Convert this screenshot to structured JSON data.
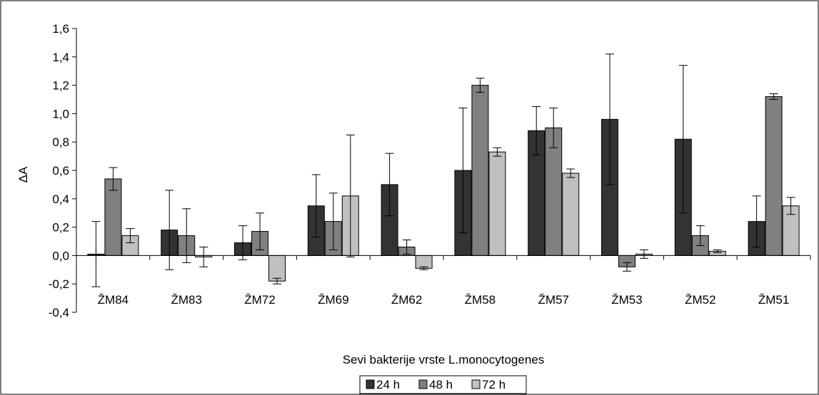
{
  "chart_data": {
    "type": "bar",
    "title": "",
    "xlabel": "Sevi bakterije vrste L.monocytogenes",
    "ylabel": "ΔA",
    "ylim": [
      -0.4,
      1.6
    ],
    "yticks": [
      "-0,4",
      "-0,2",
      "0,0",
      "0,2",
      "0,4",
      "0,6",
      "0,8",
      "1,0",
      "1,2",
      "1,4",
      "1,6"
    ],
    "categories": [
      "ŽM84",
      "ŽM83",
      "ŽM72",
      "ŽM69",
      "ŽM62",
      "ŽM58",
      "ŽM57",
      "ŽM53",
      "ŽM52",
      "ŽM51"
    ],
    "series": [
      {
        "name": "24 h",
        "color": "#333333",
        "values": [
          0.01,
          0.18,
          0.09,
          0.35,
          0.5,
          0.6,
          0.88,
          0.96,
          0.82,
          0.24
        ],
        "errors": [
          0.23,
          0.28,
          0.12,
          0.22,
          0.22,
          0.44,
          0.17,
          0.46,
          0.52,
          0.18
        ]
      },
      {
        "name": "48 h",
        "color": "#808080",
        "values": [
          0.54,
          0.14,
          0.17,
          0.24,
          0.06,
          1.2,
          0.9,
          -0.08,
          0.14,
          1.12
        ],
        "errors": [
          0.08,
          0.19,
          0.13,
          0.2,
          0.05,
          0.05,
          0.14,
          0.03,
          0.07,
          0.02
        ]
      },
      {
        "name": "72 h",
        "color": "#c0c0c0",
        "values": [
          0.14,
          -0.01,
          -0.18,
          0.42,
          -0.09,
          0.73,
          0.58,
          0.01,
          0.03,
          0.35
        ],
        "errors": [
          0.05,
          0.07,
          0.02,
          0.43,
          0.01,
          0.03,
          0.03,
          0.03,
          0.01,
          0.06
        ]
      }
    ],
    "grid": false,
    "legend_position": "bottom"
  }
}
